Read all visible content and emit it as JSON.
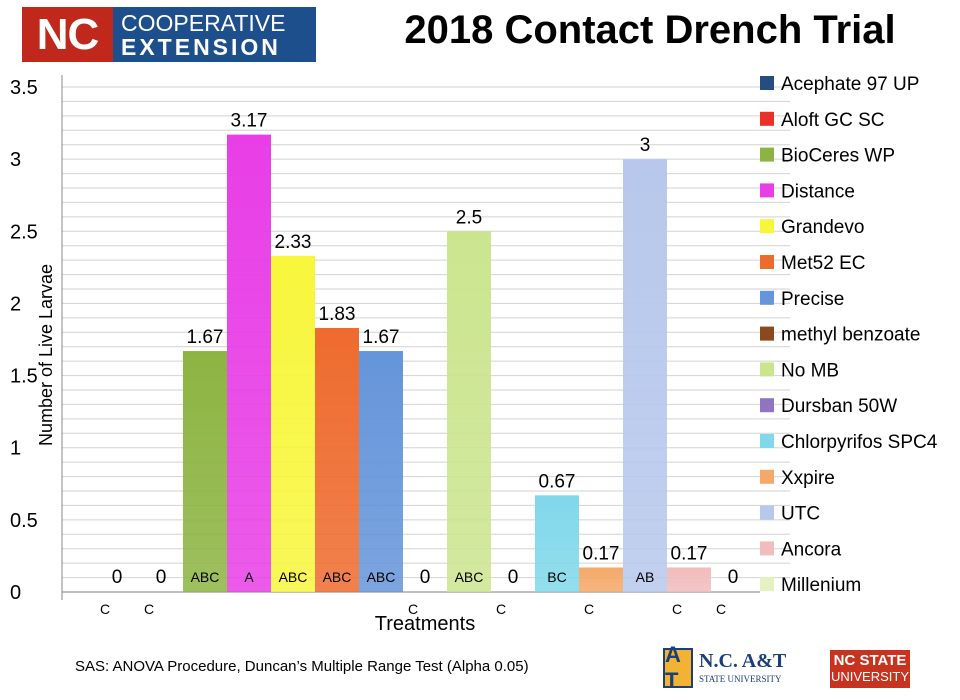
{
  "header": {
    "logo_nc": "NC",
    "logo_line1": "COOPERATIVE",
    "logo_line2": "EXTENSION"
  },
  "footer": {
    "note": "SAS: ANOVA Procedure, Duncan’s Multiple Range Test (Alpha 0.05)",
    "aggie_mark": "A T",
    "aggie_name": "N.C. A&T",
    "aggie_sub": "STATE UNIVERSITY",
    "ncstate_line1": "NC STATE",
    "ncstate_line2": "UNIVERSITY"
  },
  "chart_data": {
    "type": "bar",
    "title": "2018 Contact Drench Trial",
    "xlabel": "Treatments",
    "ylabel": "Number of Live Larvae",
    "ylim": [
      0,
      3.5
    ],
    "yticks": [
      "0",
      "0.5",
      "1",
      "1.5",
      "2",
      "2.5",
      "3",
      "3.5"
    ],
    "grid": true,
    "legend_position": "right",
    "series": [
      {
        "name": "Acephate 97 UP",
        "value": 0,
        "label": "0",
        "letter": "C",
        "color": "#264d80"
      },
      {
        "name": "Aloft GC SC",
        "value": 0,
        "label": "0",
        "letter": "C",
        "color": "#e8312a"
      },
      {
        "name": "BioCeres WP",
        "value": 1.67,
        "label": "1.67",
        "letter": "ABC",
        "color": "#8db442"
      },
      {
        "name": "Distance",
        "value": 3.17,
        "label": "3.17",
        "letter": "A",
        "color": "#e83ee6"
      },
      {
        "name": "Grandevo",
        "value": 2.33,
        "label": "2.33",
        "letter": "ABC",
        "color": "#f8f63c"
      },
      {
        "name": "Met52 EC",
        "value": 1.83,
        "label": "1.83",
        "letter": "ABC",
        "color": "#ee6b2e"
      },
      {
        "name": "Precise",
        "value": 1.67,
        "label": "1.67",
        "letter": "ABC",
        "color": "#6595da"
      },
      {
        "name": "methyl benzoate",
        "value": 0,
        "label": "0",
        "letter": "C",
        "color": "#8b4a1e"
      },
      {
        "name": "No MB",
        "value": 2.5,
        "label": "2.5",
        "letter": "ABC",
        "color": "#cbe58f"
      },
      {
        "name": "Dursban 50W",
        "value": 0,
        "label": "0",
        "letter": "C",
        "color": "#8f74c2"
      },
      {
        "name": "Chlorpyrifos SPC4",
        "value": 0.67,
        "label": "0.67",
        "letter": "BC",
        "color": "#80d8ea"
      },
      {
        "name": "Xxpire",
        "value": 0.17,
        "label": "0.17",
        "letter": "C",
        "color": "#f4a96a"
      },
      {
        "name": "UTC",
        "value": 3,
        "label": "3",
        "letter": "AB",
        "color": "#b7c8ec"
      },
      {
        "name": "Ancora",
        "value": 0.17,
        "label": "0.17",
        "letter": "C",
        "color": "#f1bcbc"
      },
      {
        "name": "Millenium",
        "value": 0,
        "label": "0",
        "letter": "C",
        "color": "#e4f2c0"
      }
    ]
  }
}
